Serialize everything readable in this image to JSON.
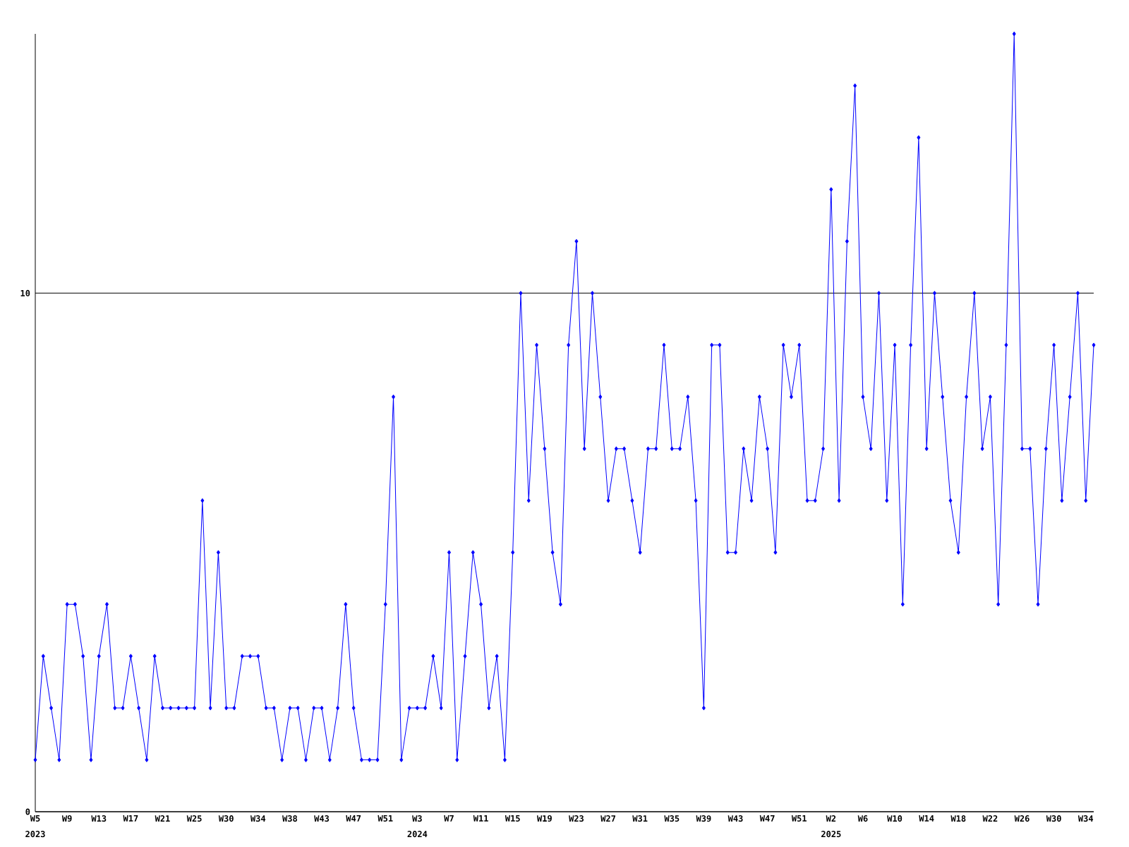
{
  "chart_data": {
    "type": "line",
    "categories": [
      "W5",
      null,
      null,
      null,
      "W9",
      null,
      null,
      null,
      "W13",
      null,
      null,
      null,
      "W17",
      null,
      null,
      null,
      "W21",
      null,
      null,
      null,
      "W25",
      null,
      null,
      null,
      "W30",
      null,
      null,
      null,
      "W34",
      null,
      null,
      null,
      "W38",
      null,
      null,
      null,
      "W43",
      null,
      null,
      null,
      "W47",
      null,
      null,
      null,
      "W51",
      null,
      null,
      null,
      "W3",
      null,
      null,
      null,
      "W7",
      null,
      null,
      null,
      "W11",
      null,
      null,
      null,
      "W15",
      null,
      null,
      null,
      "W19",
      null,
      null,
      null,
      "W23",
      null,
      null,
      null,
      "W27",
      null,
      null,
      null,
      "W31",
      null,
      null,
      null,
      "W35",
      null,
      null,
      null,
      "W39",
      null,
      null,
      null,
      "W43",
      null,
      null,
      null,
      "W47",
      null,
      null,
      null,
      "W51",
      null,
      null,
      null,
      "W2",
      null,
      null,
      null,
      "W6",
      null,
      null,
      null,
      "W10",
      null,
      null,
      null,
      "W14",
      null,
      null,
      null,
      "W18",
      null,
      null,
      null,
      "W22",
      null,
      null,
      null,
      "W26",
      null,
      null,
      null,
      "W30",
      null,
      null,
      null,
      "W34",
      null
    ],
    "series": [
      {
        "color": "#0000ff",
        "values": [
          1,
          3,
          2,
          1,
          4,
          4,
          3,
          1,
          3,
          4,
          2,
          2,
          3,
          2,
          1,
          3,
          2,
          2,
          2,
          2,
          2,
          6,
          2,
          5,
          2,
          2,
          3,
          3,
          3,
          2,
          2,
          1,
          2,
          2,
          1,
          2,
          2,
          1,
          2,
          4,
          2,
          1,
          1,
          1,
          4,
          8,
          1,
          2,
          2,
          2,
          3,
          2,
          5,
          1,
          3,
          5,
          4,
          2,
          3,
          1,
          5,
          10,
          6,
          9,
          7,
          5,
          4,
          9,
          11,
          7,
          10,
          8,
          6,
          7,
          7,
          6,
          5,
          7,
          7,
          9,
          7,
          7,
          8,
          6,
          2,
          9,
          9,
          5,
          5,
          7,
          6,
          8,
          7,
          5,
          9,
          8,
          9,
          6,
          6,
          7,
          12,
          6,
          11,
          14,
          8,
          7,
          10,
          6,
          9,
          4,
          9,
          13,
          7,
          10,
          8,
          6,
          5,
          8,
          10,
          7,
          8,
          4,
          9,
          15,
          7,
          7,
          4,
          7,
          9,
          6,
          8,
          10,
          6,
          9
        ]
      }
    ],
    "ylim": [
      0,
      15
    ],
    "yticks": [
      0,
      10
    ],
    "grid": "y",
    "marker": "diamond",
    "annotations": [
      "2023",
      "2024",
      "2025"
    ]
  }
}
